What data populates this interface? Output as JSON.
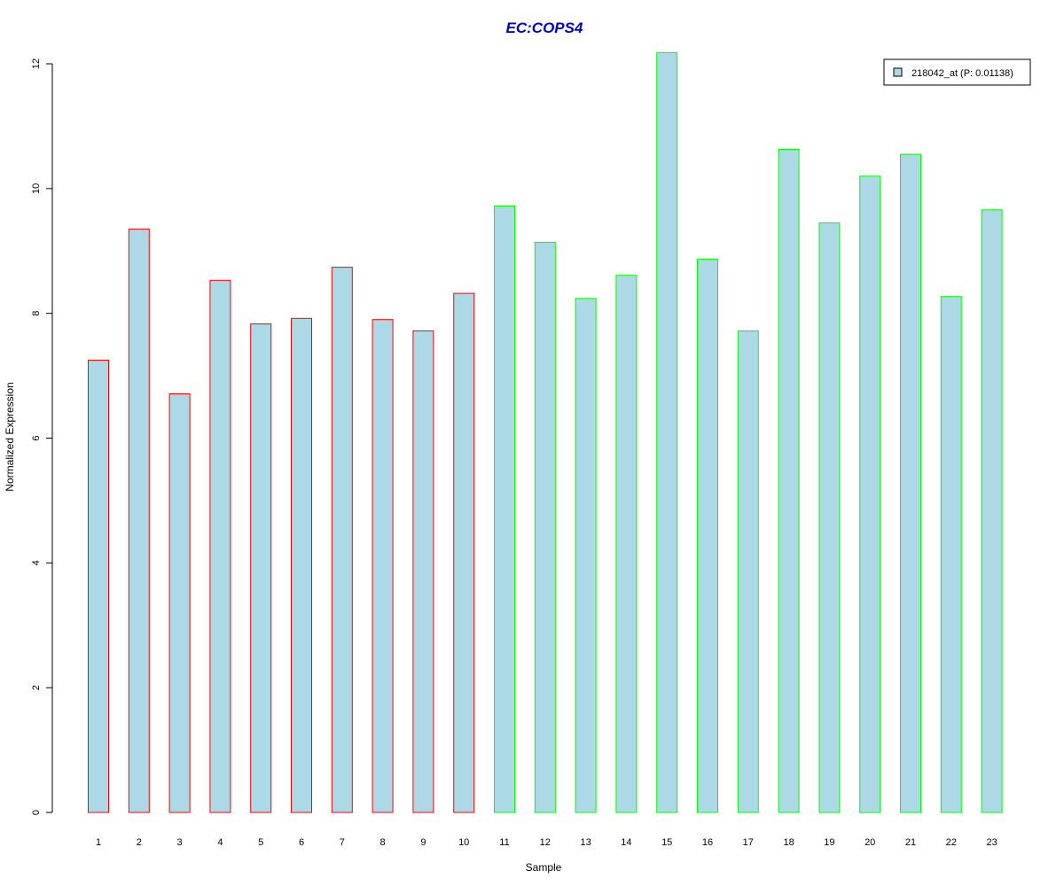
{
  "chart_data": {
    "type": "bar",
    "title": "EC:COPS4",
    "title_color": "#0000cc",
    "xlabel": "Sample",
    "ylabel": "Normalized Expression",
    "ylim": [
      0,
      12
    ],
    "yticks": [
      0,
      2,
      4,
      6,
      8,
      10,
      12
    ],
    "categories": [
      "1",
      "2",
      "3",
      "4",
      "5",
      "6",
      "7",
      "8",
      "9",
      "10",
      "11",
      "12",
      "13",
      "14",
      "15",
      "16",
      "17",
      "18",
      "19",
      "20",
      "21",
      "22",
      "23"
    ],
    "series": [
      {
        "name": "218042_at (P: 0.01138)",
        "values": [
          7.25,
          9.35,
          6.71,
          8.53,
          7.83,
          7.92,
          8.74,
          7.9,
          7.72,
          8.32,
          9.72,
          9.14,
          8.24,
          8.61,
          12.18,
          8.87,
          7.72,
          10.63,
          9.45,
          10.2,
          10.55,
          8.27,
          9.66
        ],
        "fill_color": "#add8e6",
        "border_colors": [
          "#ff0000",
          "#ff0000",
          "#ff0000",
          "#ff0000",
          "#ff0000",
          "#ff0000",
          "#ff0000",
          "#ff0000",
          "#ff0000",
          "#ff0000",
          "#00ff00",
          "#00ff00",
          "#00ff00",
          "#00ff00",
          "#00ff00",
          "#00ff00",
          "#00ff00",
          "#00ff00",
          "#00ff00",
          "#00ff00",
          "#00ff00",
          "#00ff00",
          "#00ff00"
        ]
      }
    ],
    "legend": {
      "position": "top-right",
      "label": "218042_at (P: 0.01138)"
    },
    "grid": false
  }
}
